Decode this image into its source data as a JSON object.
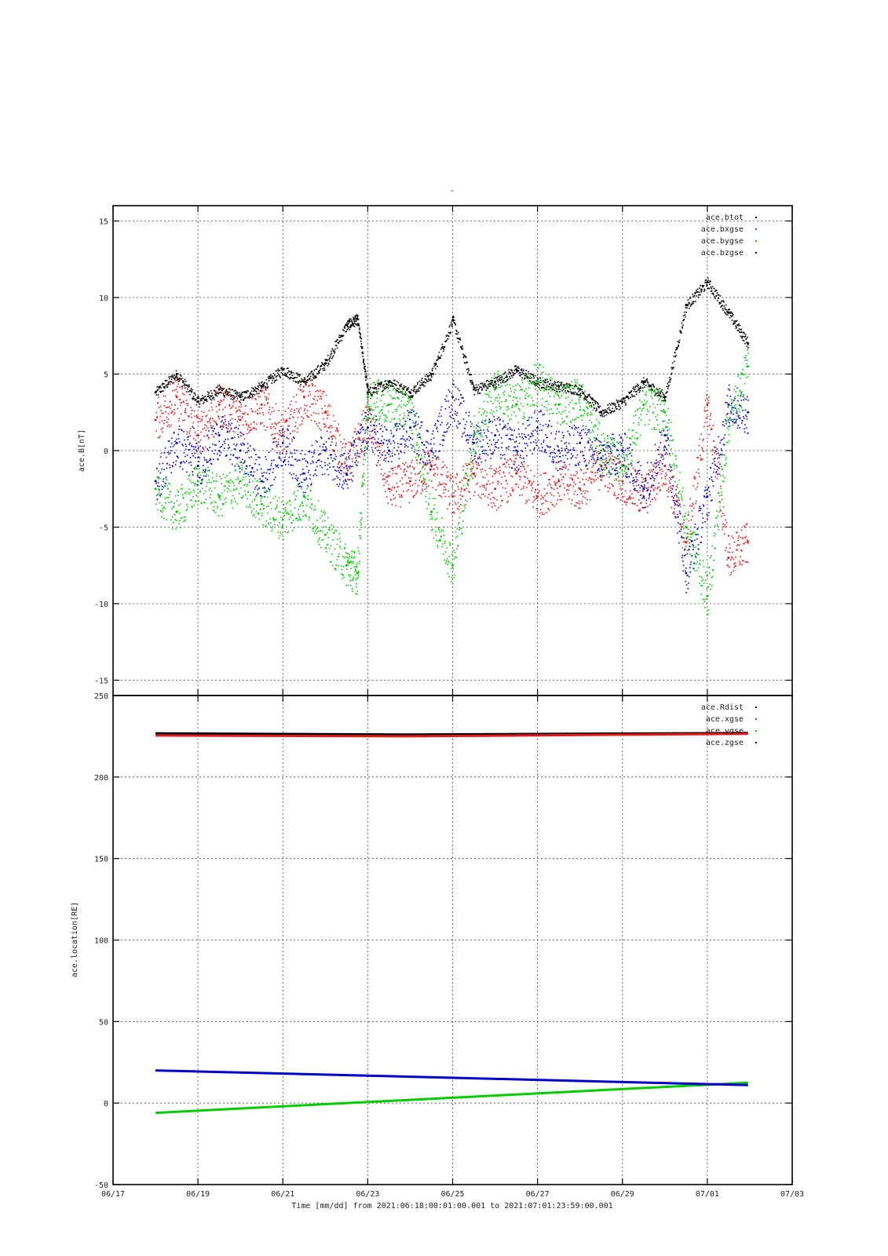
{
  "title": "-",
  "xlabel": "Time [mm/dd]  from 2021:06:18:00:01:00.001  to  2021:07:01:23:59:00.001",
  "x_tick_labels": [
    "06/17",
    "06/19",
    "06/21",
    "06/23",
    "06/25",
    "06/27",
    "06/29",
    "07/01",
    "07/03"
  ],
  "chart_data": [
    {
      "type": "scatter",
      "ylabel": "ace.B[nT]",
      "xlim": [
        "2021-06-17",
        "2021-07-03"
      ],
      "ylim": [
        -16,
        16
      ],
      "yticks": [
        -15,
        -10,
        -5,
        0,
        5,
        10,
        15
      ],
      "grid": true,
      "legend_position": "top-right",
      "series": [
        {
          "name": "ace.btot",
          "color": "#000000",
          "x": [
            "2021-06-18",
            "2021-06-18T12",
            "2021-06-19",
            "2021-06-19T12",
            "2021-06-20",
            "2021-06-20T12",
            "2021-06-21",
            "2021-06-21T12",
            "2021-06-22",
            "2021-06-22T12",
            "2021-06-22T18",
            "2021-06-23",
            "2021-06-23T12",
            "2021-06-24",
            "2021-06-24T12",
            "2021-06-25",
            "2021-06-25T12",
            "2021-06-26",
            "2021-06-26T12",
            "2021-06-27",
            "2021-06-27T12",
            "2021-06-28",
            "2021-06-28T12",
            "2021-06-29",
            "2021-06-29T12",
            "2021-06-30",
            "2021-06-30T12",
            "2021-07-01",
            "2021-07-01T12",
            "2021-07-01T23"
          ],
          "y": [
            3.8,
            5.0,
            3.2,
            4.0,
            3.5,
            4.2,
            5.3,
            4.5,
            5.7,
            8.2,
            8.6,
            3.8,
            4.5,
            3.8,
            5.0,
            8.5,
            4.0,
            4.5,
            5.3,
            4.5,
            4.2,
            4.0,
            2.5,
            3.2,
            4.5,
            3.5,
            9.5,
            11.0,
            9.0,
            7.0
          ]
        },
        {
          "name": "ace.bxgse",
          "color": "#e31a1c",
          "x": [
            "2021-06-18",
            "2021-06-18T12",
            "2021-06-19",
            "2021-06-19T12",
            "2021-06-20",
            "2021-06-20T12",
            "2021-06-21",
            "2021-06-21T12",
            "2021-06-22",
            "2021-06-22T12",
            "2021-06-23",
            "2021-06-23T12",
            "2021-06-24",
            "2021-06-24T12",
            "2021-06-25",
            "2021-06-25T12",
            "2021-06-26",
            "2021-06-26T12",
            "2021-06-27",
            "2021-06-27T12",
            "2021-06-28",
            "2021-06-28T12",
            "2021-06-29",
            "2021-06-29T12",
            "2021-06-30",
            "2021-06-30T12",
            "2021-07-01",
            "2021-07-01T12",
            "2021-07-01T23"
          ],
          "y": [
            2.0,
            3.5,
            1.0,
            3.0,
            2.0,
            3.0,
            1.0,
            3.5,
            2.5,
            -1.0,
            2.0,
            -2.5,
            -2.0,
            -1.0,
            -3.0,
            -1.5,
            -2.5,
            -1.5,
            -3.0,
            -2.0,
            -2.5,
            -1.0,
            -2.0,
            -3.0,
            -1.0,
            -6.0,
            3.0,
            -7.0,
            -6.0
          ]
        },
        {
          "name": "ace.bygse",
          "color": "#00cc00",
          "x": [
            "2021-06-18",
            "2021-06-18T12",
            "2021-06-19",
            "2021-06-19T12",
            "2021-06-20",
            "2021-06-20T12",
            "2021-06-21",
            "2021-06-21T12",
            "2021-06-22",
            "2021-06-22T12",
            "2021-06-22T18",
            "2021-06-23",
            "2021-06-23T12",
            "2021-06-24",
            "2021-06-24T12",
            "2021-06-25",
            "2021-06-25T12",
            "2021-06-26",
            "2021-06-26T12",
            "2021-06-27",
            "2021-06-27T12",
            "2021-06-28",
            "2021-06-28T12",
            "2021-06-29",
            "2021-06-29T12",
            "2021-06-30",
            "2021-06-30T12",
            "2021-07-01",
            "2021-07-01T12",
            "2021-07-01T23"
          ],
          "y": [
            -2.5,
            -4.0,
            -2.0,
            -3.0,
            -2.0,
            -3.5,
            -4.5,
            -3.0,
            -5.5,
            -7.5,
            -8.0,
            3.5,
            3.0,
            2.5,
            -4.0,
            -7.5,
            1.0,
            4.0,
            3.0,
            4.5,
            3.0,
            3.5,
            0.0,
            -1.0,
            3.0,
            2.5,
            -5.0,
            -9.5,
            2.0,
            5.5
          ]
        },
        {
          "name": "ace.bzgse",
          "color": "#0000cc",
          "x": [
            "2021-06-18",
            "2021-06-18T12",
            "2021-06-19",
            "2021-06-19T12",
            "2021-06-20",
            "2021-06-20T12",
            "2021-06-21",
            "2021-06-21T12",
            "2021-06-22",
            "2021-06-22T12",
            "2021-06-23",
            "2021-06-23T12",
            "2021-06-24",
            "2021-06-24T12",
            "2021-06-25",
            "2021-06-25T12",
            "2021-06-26",
            "2021-06-26T12",
            "2021-06-27",
            "2021-06-27T12",
            "2021-06-28",
            "2021-06-28T12",
            "2021-06-29",
            "2021-06-29T12",
            "2021-06-30",
            "2021-06-30T12",
            "2021-07-01",
            "2021-07-01T12",
            "2021-07-01T23"
          ],
          "y": [
            -2.0,
            0.5,
            -1.0,
            1.0,
            0.0,
            -2.0,
            0.5,
            -1.5,
            0.0,
            -1.5,
            1.5,
            0.0,
            1.5,
            0.0,
            3.5,
            0.5,
            1.0,
            0.0,
            1.5,
            0.0,
            0.5,
            -0.5,
            0.0,
            -2.5,
            1.0,
            -8.0,
            -3.0,
            3.0,
            2.5
          ]
        }
      ]
    },
    {
      "type": "line",
      "ylabel": "ace.location[RE]",
      "xlim": [
        "2021-06-17",
        "2021-07-03"
      ],
      "ylim": [
        -50,
        250
      ],
      "yticks": [
        -50,
        0,
        50,
        100,
        150,
        200,
        250
      ],
      "grid": true,
      "legend_position": "top-right",
      "series": [
        {
          "name": "ace.Rdist",
          "color": "#000000",
          "x": [
            "2021-06-18",
            "2021-06-24",
            "2021-07-01T23"
          ],
          "y": [
            226.8,
            226.0,
            227.0
          ]
        },
        {
          "name": "ace.xgse",
          "color": "#e31a1c",
          "x": [
            "2021-06-18",
            "2021-06-24",
            "2021-07-01T23"
          ],
          "y": [
            225.5,
            225.0,
            226.5
          ]
        },
        {
          "name": "ace.ygse",
          "color": "#00cc00",
          "x": [
            "2021-06-18",
            "2021-07-01T23"
          ],
          "y": [
            -6.0,
            12.5
          ]
        },
        {
          "name": "ace.zgse",
          "color": "#0000cc",
          "x": [
            "2021-06-18",
            "2021-07-01T23"
          ],
          "y": [
            20.0,
            11.0
          ]
        }
      ]
    }
  ]
}
